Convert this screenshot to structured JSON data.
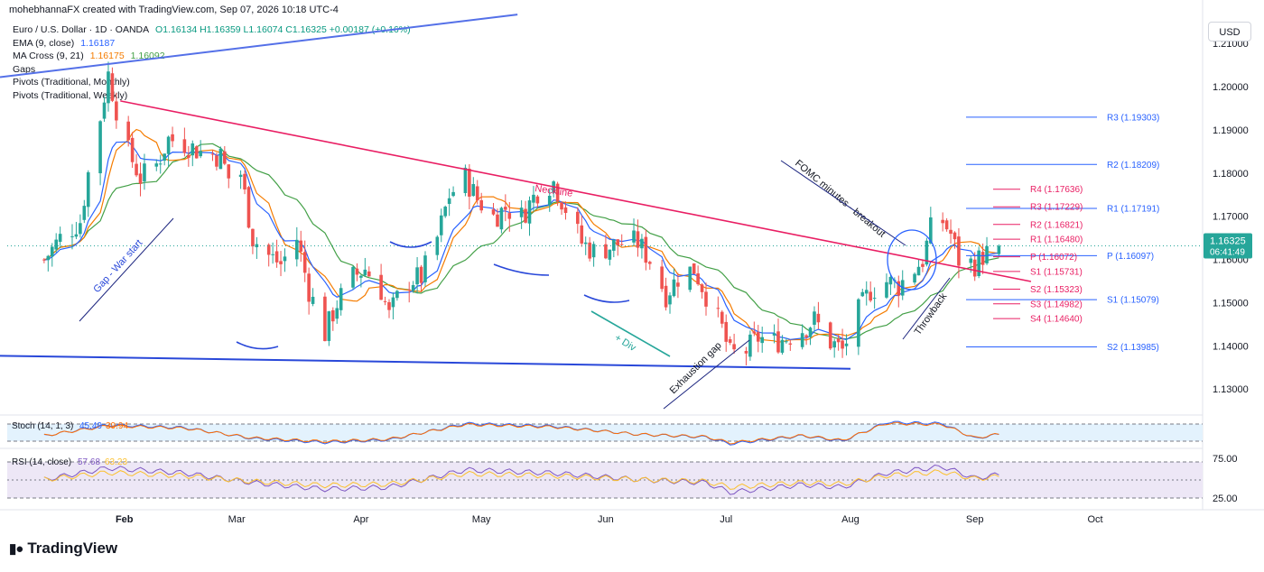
{
  "header": {
    "text": "mohebhannaFX created with TradingView.com, Sep 07, 2026 10:18 UTC-4"
  },
  "legend": {
    "symbol": "Euro / U.S. Dollar · 1D · OANDA",
    "ohlc": "O1.16134 H1.16359 L1.16074 C1.16325 +0.00187 (+0.16%)",
    "ema_label": "EMA (9, close)",
    "ema_value": "1.16187",
    "ma_label": "MA Cross (9, 21)",
    "ma_value1": "1.16175",
    "ma_value2": "1.16092",
    "gaps_label": "Gaps",
    "pivots_monthly_label": "Pivots (Traditional, Monthly)",
    "pivots_weekly_label": "Pivots (Traditional, Weekly)"
  },
  "currency_button": "USD",
  "last_price": "1.16325",
  "countdown": "06:41:49",
  "logo_text": "TradingView",
  "colors": {
    "up": "#26a69a",
    "down": "#ef5350",
    "ema": "#2962ff",
    "ma_fast": "#f57c00",
    "ma_slow": "#43a047",
    "neckline": "#e91e63",
    "trend": "#2948d9",
    "monthly_pivot": "#2962ff",
    "weekly_pivot": "#e91e63",
    "stoch_k": "#2962ff",
    "stoch_d": "#ff6d00",
    "rsi": "#7e57c2",
    "rsi_ma": "#fbc02d"
  },
  "chart_data": {
    "type": "candlestick",
    "instrument": "EUR/USD",
    "interval": "1D",
    "x_labels": [
      "Feb",
      "Mar",
      "Apr",
      "May",
      "Jun",
      "Jul",
      "Aug",
      "Sep",
      "Oct"
    ],
    "y_ticks": [
      "1.21000",
      "1.20000",
      "1.19000",
      "1.18000",
      "1.17000",
      "1.16000",
      "1.15000",
      "1.14000",
      "1.13000"
    ],
    "ylim": [
      1.1245,
      1.2185
    ],
    "close_path": [
      [
        "2026-01-12",
        1.16
      ],
      [
        "2026-01-16",
        1.165
      ],
      [
        "2026-01-21",
        1.169
      ],
      [
        "2026-01-23",
        1.18
      ],
      [
        "2026-01-26",
        1.193
      ],
      [
        "2026-01-28",
        1.203
      ],
      [
        "2026-01-30",
        1.195
      ],
      [
        "2026-02-02",
        1.185
      ],
      [
        "2026-02-05",
        1.179
      ],
      [
        "2026-02-09",
        1.182
      ],
      [
        "2026-02-12",
        1.188
      ],
      [
        "2026-02-16",
        1.187
      ],
      [
        "2026-02-20",
        1.185
      ],
      [
        "2026-02-25",
        1.184
      ],
      [
        "2026-02-27",
        1.179
      ],
      [
        "2026-03-02",
        1.18
      ],
      [
        "2026-03-05",
        1.165
      ],
      [
        "2026-03-09",
        1.161
      ],
      [
        "2026-03-12",
        1.159
      ],
      [
        "2026-03-16",
        1.165
      ],
      [
        "2026-03-19",
        1.153
      ],
      [
        "2026-03-23",
        1.143
      ],
      [
        "2026-03-26",
        1.15
      ],
      [
        "2026-03-30",
        1.156
      ],
      [
        "2026-04-02",
        1.158
      ],
      [
        "2026-04-06",
        1.153
      ],
      [
        "2026-04-08",
        1.147
      ],
      [
        "2026-04-12",
        1.155
      ],
      [
        "2026-04-16",
        1.156
      ],
      [
        "2026-04-20",
        1.165
      ],
      [
        "2026-04-23",
        1.175
      ],
      [
        "2026-04-27",
        1.179
      ],
      [
        "2026-04-30",
        1.174
      ],
      [
        "2026-05-04",
        1.17
      ],
      [
        "2026-05-07",
        1.172
      ],
      [
        "2026-05-11",
        1.17
      ],
      [
        "2026-05-15",
        1.176
      ],
      [
        "2026-05-19",
        1.178
      ],
      [
        "2026-05-22",
        1.172
      ],
      [
        "2026-05-26",
        1.164
      ],
      [
        "2026-05-29",
        1.162
      ],
      [
        "2026-06-02",
        1.163
      ],
      [
        "2026-06-05",
        1.164
      ],
      [
        "2026-06-09",
        1.164
      ],
      [
        "2026-06-12",
        1.16
      ],
      [
        "2026-06-16",
        1.152
      ],
      [
        "2026-06-19",
        1.156
      ],
      [
        "2026-06-23",
        1.158
      ],
      [
        "2026-06-26",
        1.152
      ],
      [
        "2026-06-30",
        1.144
      ],
      [
        "2026-07-02",
        1.138
      ],
      [
        "2026-07-06",
        1.139
      ],
      [
        "2026-07-09",
        1.142
      ],
      [
        "2026-07-13",
        1.141
      ],
      [
        "2026-07-16",
        1.142
      ],
      [
        "2026-07-20",
        1.144
      ],
      [
        "2026-07-23",
        1.146
      ],
      [
        "2026-07-27",
        1.141
      ],
      [
        "2026-07-30",
        1.139
      ],
      [
        "2026-08-03",
        1.148
      ],
      [
        "2026-08-06",
        1.153
      ],
      [
        "2026-08-10",
        1.155
      ],
      [
        "2026-08-13",
        1.154
      ],
      [
        "2026-08-17",
        1.158
      ],
      [
        "2026-08-19",
        1.16
      ],
      [
        "2026-08-21",
        1.167
      ],
      [
        "2026-08-24",
        1.169
      ],
      [
        "2026-08-26",
        1.166
      ],
      [
        "2026-08-28",
        1.16
      ],
      [
        "2026-09-01",
        1.159
      ],
      [
        "2026-09-03",
        1.161
      ],
      [
        "2026-09-07",
        1.16325
      ]
    ],
    "pivots": [
      {
        "label": "R3 (1.19303)",
        "value": 1.19303,
        "set": "monthly"
      },
      {
        "label": "R2 (1.18209)",
        "value": 1.18209,
        "set": "monthly"
      },
      {
        "label": "R1 (1.17191)",
        "value": 1.17191,
        "set": "monthly"
      },
      {
        "label": "P (1.16097)",
        "value": 1.16097,
        "set": "monthly"
      },
      {
        "label": "S1 (1.15079)",
        "value": 1.15079,
        "set": "monthly"
      },
      {
        "label": "S2 (1.13985)",
        "value": 1.13985,
        "set": "monthly"
      },
      {
        "label": "R4 (1.17636)",
        "value": 1.17636,
        "set": "weekly"
      },
      {
        "label": "R3 (1.17229)",
        "value": 1.17229,
        "set": "weekly"
      },
      {
        "label": "R2 (1.16821)",
        "value": 1.16821,
        "set": "weekly"
      },
      {
        "label": "R1 (1.16480)",
        "value": 1.1648,
        "set": "weekly"
      },
      {
        "label": "P (1.16072)",
        "value": 1.16072,
        "set": "weekly"
      },
      {
        "label": "S1 (1.15731)",
        "value": 1.15731,
        "set": "weekly"
      },
      {
        "label": "S2 (1.15323)",
        "value": 1.15323,
        "set": "weekly"
      },
      {
        "label": "S3 (1.14982)",
        "value": 1.14982,
        "set": "weekly"
      },
      {
        "label": "S4 (1.14640)",
        "value": 1.1464,
        "set": "weekly"
      }
    ],
    "annotations": {
      "neckline": "Neckline",
      "gap_war": "Gap - War start",
      "div": "+ Div",
      "exhaustion": "Exhaustion gap",
      "fomc": "FOMC minutes - breakout",
      "throwback": "Throwback"
    },
    "trendlines": [
      {
        "name": "neckline",
        "from": [
          "2026-01-31",
          1.1968
        ],
        "to": [
          "2026-09-15",
          1.155
        ]
      },
      {
        "name": "lower-support",
        "from": [
          "2026-01-01",
          1.1378
        ],
        "to": [
          "2026-08-01",
          1.1348
        ]
      },
      {
        "name": "upper-channel",
        "from": [
          "2026-01-01",
          1.2023
        ],
        "to": [
          "2026-05-10",
          1.2168
        ]
      }
    ],
    "stoch": {
      "label": "Stoch (14, 1, 3)",
      "k": "45.49",
      "d": "39.94",
      "k_path": [
        [
          "2026-01-12",
          40
        ],
        [
          "2026-01-28",
          80
        ],
        [
          "2026-02-16",
          70
        ],
        [
          "2026-03-05",
          30
        ],
        [
          "2026-03-23",
          15
        ],
        [
          "2026-04-08",
          25
        ],
        [
          "2026-04-27",
          85
        ],
        [
          "2026-05-19",
          75
        ],
        [
          "2026-06-09",
          45
        ],
        [
          "2026-06-26",
          35
        ],
        [
          "2026-07-02",
          10
        ],
        [
          "2026-07-20",
          40
        ],
        [
          "2026-07-30",
          20
        ],
        [
          "2026-08-10",
          90
        ],
        [
          "2026-08-24",
          85
        ],
        [
          "2026-09-01",
          30
        ],
        [
          "2026-09-07",
          45.49
        ]
      ]
    },
    "rsi": {
      "label": "RSI (14, close)",
      "value": "57.68",
      "ma": "63.23",
      "ticks": [
        "75.00",
        "25.00"
      ],
      "path": [
        [
          "2026-01-12",
          50
        ],
        [
          "2026-01-28",
          68
        ],
        [
          "2026-02-16",
          60
        ],
        [
          "2026-03-05",
          45
        ],
        [
          "2026-03-23",
          35
        ],
        [
          "2026-04-08",
          38
        ],
        [
          "2026-04-27",
          65
        ],
        [
          "2026-05-19",
          60
        ],
        [
          "2026-06-09",
          50
        ],
        [
          "2026-06-26",
          45
        ],
        [
          "2026-07-02",
          30
        ],
        [
          "2026-07-20",
          42
        ],
        [
          "2026-07-30",
          38
        ],
        [
          "2026-08-10",
          60
        ],
        [
          "2026-08-24",
          70
        ],
        [
          "2026-09-01",
          52
        ],
        [
          "2026-09-07",
          57.68
        ]
      ]
    }
  }
}
